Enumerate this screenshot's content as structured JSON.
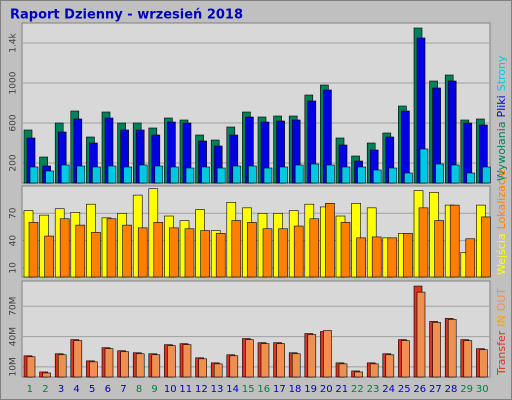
{
  "title": "Raport Dzienny -  wrzesień 2018",
  "chart_data": [
    {
      "type": "bar",
      "ylim": [
        0,
        1600
      ],
      "yticks": [
        {
          "value": 200,
          "label": "200"
        },
        {
          "value": 600,
          "label": "600"
        },
        {
          "value": 1000,
          "label": "1000"
        },
        {
          "value": 1400,
          "label": "1.4k"
        }
      ],
      "series": [
        {
          "name": "Wywołania",
          "color": "#00805c",
          "values": [
            530,
            260,
            600,
            720,
            460,
            710,
            600,
            600,
            550,
            650,
            630,
            480,
            430,
            560,
            710,
            660,
            670,
            670,
            880,
            980,
            450,
            270,
            400,
            500,
            770,
            1550,
            1020,
            1080,
            630,
            640
          ]
        },
        {
          "name": "Pliki",
          "color": "#0000e0",
          "values": [
            450,
            170,
            510,
            640,
            400,
            650,
            530,
            530,
            480,
            610,
            600,
            420,
            370,
            480,
            660,
            610,
            620,
            630,
            820,
            930,
            380,
            220,
            330,
            460,
            720,
            1450,
            950,
            1020,
            600,
            580
          ]
        },
        {
          "name": "Strony",
          "color": "#00c8e0",
          "values": [
            160,
            120,
            180,
            170,
            160,
            170,
            160,
            180,
            170,
            160,
            150,
            160,
            150,
            170,
            170,
            150,
            160,
            180,
            190,
            180,
            160,
            160,
            130,
            150,
            100,
            340,
            190,
            180,
            100,
            160
          ]
        }
      ]
    },
    {
      "type": "bar",
      "ylim": [
        0,
        100
      ],
      "yticks": [
        10,
        40,
        70
      ],
      "series": [
        {
          "name": "Wejścia",
          "color": "#ffff00",
          "values": [
            73,
            68,
            75,
            71,
            80,
            65,
            70,
            90,
            97,
            67,
            62,
            74,
            51,
            82,
            76,
            70,
            70,
            73,
            80,
            77,
            67,
            81,
            76,
            43,
            48,
            95,
            93,
            79,
            27,
            79
          ]
        },
        {
          "name": "Lokalizacje",
          "color": "#ff8000",
          "values": [
            60,
            45,
            64,
            57,
            49,
            64,
            57,
            54,
            60,
            54,
            53,
            51,
            48,
            62,
            60,
            53,
            53,
            56,
            64,
            81,
            60,
            43,
            44,
            43,
            48,
            76,
            62,
            79,
            42,
            66
          ]
        }
      ]
    },
    {
      "type": "bar",
      "ylim": [
        0,
        95
      ],
      "yticks": [
        {
          "value": 10,
          "label": "10M"
        },
        {
          "value": 40,
          "label": "40M"
        },
        {
          "value": 70,
          "label": "70M"
        }
      ],
      "categories": [
        "1",
        "2",
        "3",
        "4",
        "5",
        "6",
        "7",
        "8",
        "9",
        "10",
        "11",
        "12",
        "13",
        "14",
        "15",
        "16",
        "17",
        "18",
        "19",
        "20",
        "21",
        "22",
        "23",
        "24",
        "25",
        "26",
        "27",
        "28",
        "29",
        "30"
      ],
      "category_colors": [
        "#008040",
        "#008040",
        "#0000c0",
        "#0000c0",
        "#0000c0",
        "#0000c0",
        "#0000c0",
        "#008040",
        "#008040",
        "#0000c0",
        "#0000c0",
        "#0000c0",
        "#0000c0",
        "#0000c0",
        "#008040",
        "#008040",
        "#0000c0",
        "#0000c0",
        "#0000c0",
        "#0000c0",
        "#0000c0",
        "#008040",
        "#008040",
        "#0000c0",
        "#0000c0",
        "#0000c0",
        "#0000c0",
        "#0000c0",
        "#008040",
        "#008040"
      ],
      "series": [
        {
          "name": "Transfer",
          "color": "#e03020",
          "values": [
            21,
            5,
            23,
            37,
            16,
            29,
            26,
            24,
            23,
            32,
            33,
            19,
            14,
            22,
            38,
            34,
            34,
            24,
            43,
            45,
            14,
            6,
            14,
            23,
            37,
            90,
            55,
            58,
            37,
            28
          ]
        },
        {
          "name": "IN",
          "color": "#ffa000",
          "values": [
            0,
            0,
            0,
            0,
            0,
            0,
            0,
            0,
            0,
            0,
            0,
            0,
            0,
            0,
            0,
            0,
            0,
            0,
            0,
            0,
            0,
            0,
            0,
            0,
            0,
            0,
            0,
            0,
            0,
            0
          ]
        },
        {
          "name": "OUT",
          "color": "#f09050",
          "values": [
            20,
            4,
            22,
            36,
            15,
            28,
            25,
            23,
            22,
            31,
            32,
            18,
            13,
            21,
            37,
            33,
            33,
            23,
            42,
            46,
            13,
            5,
            13,
            22,
            36,
            84,
            54,
            57,
            36,
            27
          ]
        }
      ]
    }
  ]
}
